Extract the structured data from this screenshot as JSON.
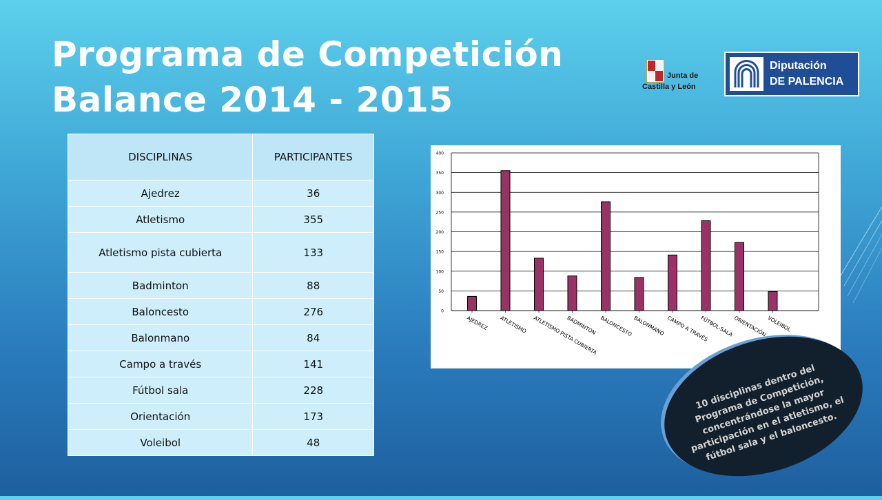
{
  "title": {
    "line1": "Programa de Competición",
    "line2": "Balance 2014 - 2015"
  },
  "logos": {
    "jcyl": {
      "line1": "Junta de",
      "line2": "Castilla y León"
    },
    "diputacion": {
      "line1": "Diputación",
      "line2": "DE PALENCIA"
    }
  },
  "table": {
    "headers": [
      "DISCIPLINAS",
      "PARTICIPANTES"
    ],
    "rows": [
      [
        "Ajedrez",
        "36"
      ],
      [
        "Atletismo",
        "355"
      ],
      [
        "Atletismo pista cubierta",
        "133"
      ],
      [
        "Badminton",
        "88"
      ],
      [
        "Baloncesto",
        "276"
      ],
      [
        "Balonmano",
        "84"
      ],
      [
        "Campo a través",
        "141"
      ],
      [
        "Fútbol sala",
        "228"
      ],
      [
        "Orientación",
        "173"
      ],
      [
        "Voleibol",
        "48"
      ]
    ]
  },
  "chart_data": {
    "type": "bar",
    "categories": [
      "AJEDREZ",
      "ATLETISMO",
      "ATLETISMO PISTA CUBIERTA",
      "BADMINTON",
      "BALONCESTO",
      "BALONMANO",
      "CAMPO A TRAVÉS",
      "FÚTBOL-SALA",
      "ORIENTACIÓN",
      "VOLEIBOL"
    ],
    "values": [
      36,
      355,
      133,
      88,
      276,
      84,
      141,
      228,
      173,
      48
    ],
    "ylim": [
      0,
      400
    ],
    "yticks": [
      "0",
      "50",
      "100",
      "150",
      "200",
      "250",
      "300",
      "350",
      "400"
    ],
    "grid": true,
    "bar_color": "#993366",
    "title": "",
    "xlabel": "",
    "ylabel": ""
  },
  "callout": {
    "text": "10 disciplinas dentro del Programa de Competición, concentrándose la mayor participación en el atletismo, el fútbol sala y el baloncesto."
  },
  "colors": {
    "background_top": "#5cd0ec",
    "background_bottom": "#1e5f9e",
    "table_cell": "#cdeefa",
    "callout": "#12202e"
  }
}
